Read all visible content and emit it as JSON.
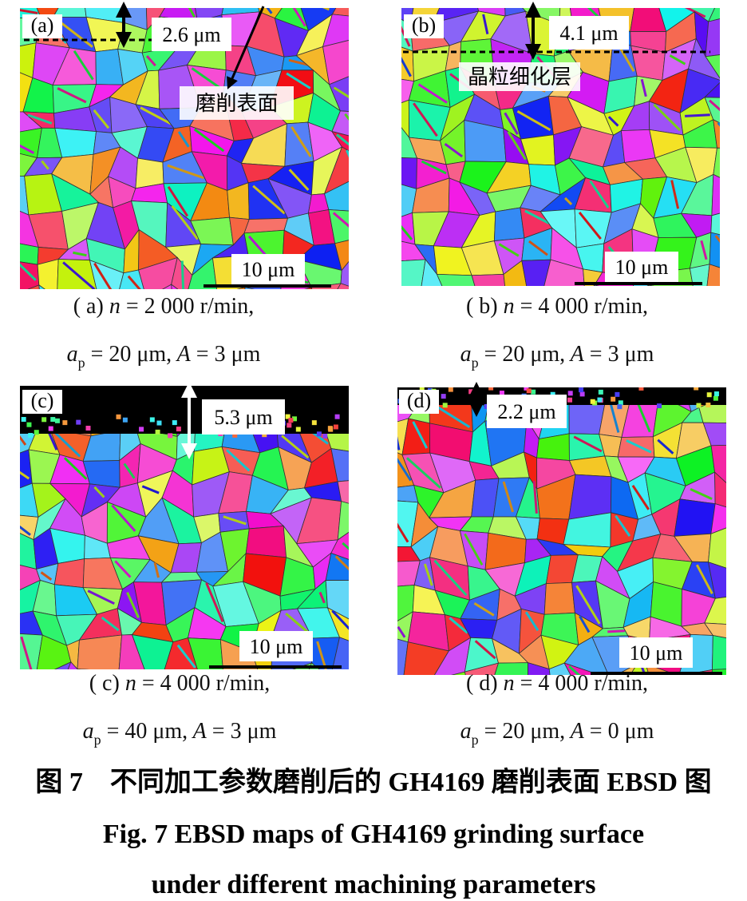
{
  "panels": [
    {
      "label": "(a)",
      "thickness": "2.6 μm",
      "annotation": "磨削表面",
      "scale_bar": "10 μm",
      "caption_line1": [
        "( a)",
        "n",
        "= 2 000 r/min,"
      ],
      "caption_line2": [
        "a",
        "p",
        "= 20 μm,",
        "A",
        "= 3 μm"
      ]
    },
    {
      "label": "(b)",
      "thickness": "4.1 μm",
      "annotation": "晶粒细化层",
      "scale_bar": "10 μm",
      "caption_line1": [
        "( b)",
        "n",
        "= 4 000 r/min,"
      ],
      "caption_line2": [
        "a",
        "p",
        "= 20 μm,",
        "A",
        "= 3 μm"
      ]
    },
    {
      "label": "(c)",
      "thickness": "5.3 μm",
      "scale_bar": "10 μm",
      "caption_line1": [
        "( c)",
        "n",
        "= 4 000 r/min,"
      ],
      "caption_line2": [
        "a",
        "p",
        "= 40 μm,",
        "A",
        "= 3 μm"
      ]
    },
    {
      "label": "(d)",
      "thickness": "2.2 μm",
      "scale_bar": "10 μm",
      "caption_line1": [
        "( d)",
        "n",
        "= 4 000 r/min,"
      ],
      "caption_line2": [
        "a",
        "p",
        "= 20 μm,",
        "A",
        "= 0 μm"
      ]
    }
  ],
  "figure_caption": {
    "zh": "图 7　不同加工参数磨削后的 GH4169 磨削表面 EBSD 图",
    "en_lines": [
      "Fig. 7 EBSD maps of GH4169 grinding surface",
      "under different machining parameters"
    ]
  }
}
